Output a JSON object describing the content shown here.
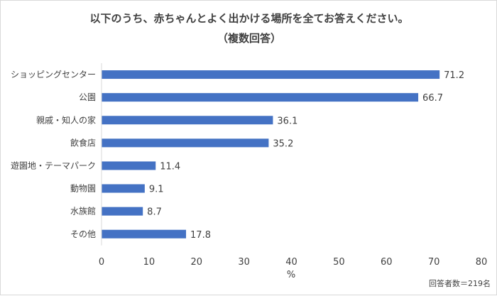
{
  "chart_data": {
    "type": "bar",
    "orientation": "horizontal",
    "title": "以下のうち、赤ちゃんとよく出かける場所を全てお答えください。",
    "subtitle": "（複数回答）",
    "categories": [
      "ショッピングセンター",
      "公園",
      "親戚・知人の家",
      "飲食店",
      "遊園地・テーマパーク",
      "動物園",
      "水族館",
      "その他"
    ],
    "values": [
      71.2,
      66.7,
      36.1,
      35.2,
      11.4,
      9.1,
      8.7,
      17.8
    ],
    "value_labels": [
      "71.2",
      "66.7",
      "36.1",
      "35.2",
      "11.4",
      "9.1",
      "8.7",
      "17.8"
    ],
    "xlabel": "%",
    "ylabel": "",
    "xlim": [
      0,
      80
    ],
    "xticks": [
      "0",
      "10",
      "20",
      "30",
      "40",
      "50",
      "60",
      "70",
      "80"
    ],
    "grid": false,
    "legend": "none",
    "bar_color": "#4472c4",
    "note": "回答者数＝219名"
  }
}
